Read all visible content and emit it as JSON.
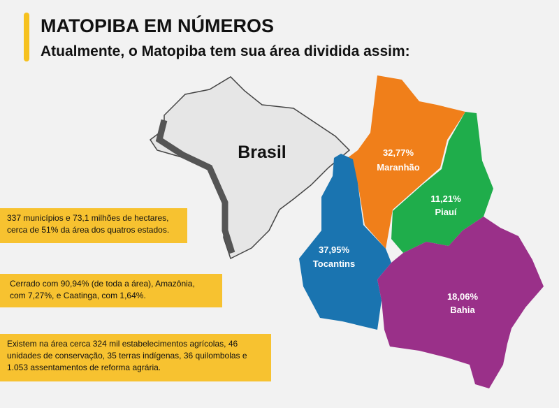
{
  "header": {
    "title": "MATOPIBA EM NÚMEROS",
    "subtitle": "Atualmente, o Matopiba tem sua área dividida assim:"
  },
  "map": {
    "country": "Brasil",
    "regions": [
      {
        "share": "32,77%",
        "name": "Maranhão"
      },
      {
        "share": "11,21%",
        "name": "Piauí"
      },
      {
        "share": "37,95%",
        "name": "Tocantins"
      },
      {
        "share": "18,06%",
        "name": "Bahia"
      }
    ]
  },
  "notes": [
    [
      "337 municípios e 73,1 milhões de hectares,",
      "cerca de 51% da área dos quatros estados."
    ],
    [
      "Cerrado com 90,94% (de toda a área), Amazônia,",
      "com 7,27%, e Caatinga, com 1,64%."
    ],
    [
      "Existem na área cerca 324 mil estabelecimentos agrícolas, 46",
      "unidades de conservação, 35 terras indígenas, 36 quilombolas e",
      "1.053 assentamentos de reforma agrária."
    ]
  ]
}
